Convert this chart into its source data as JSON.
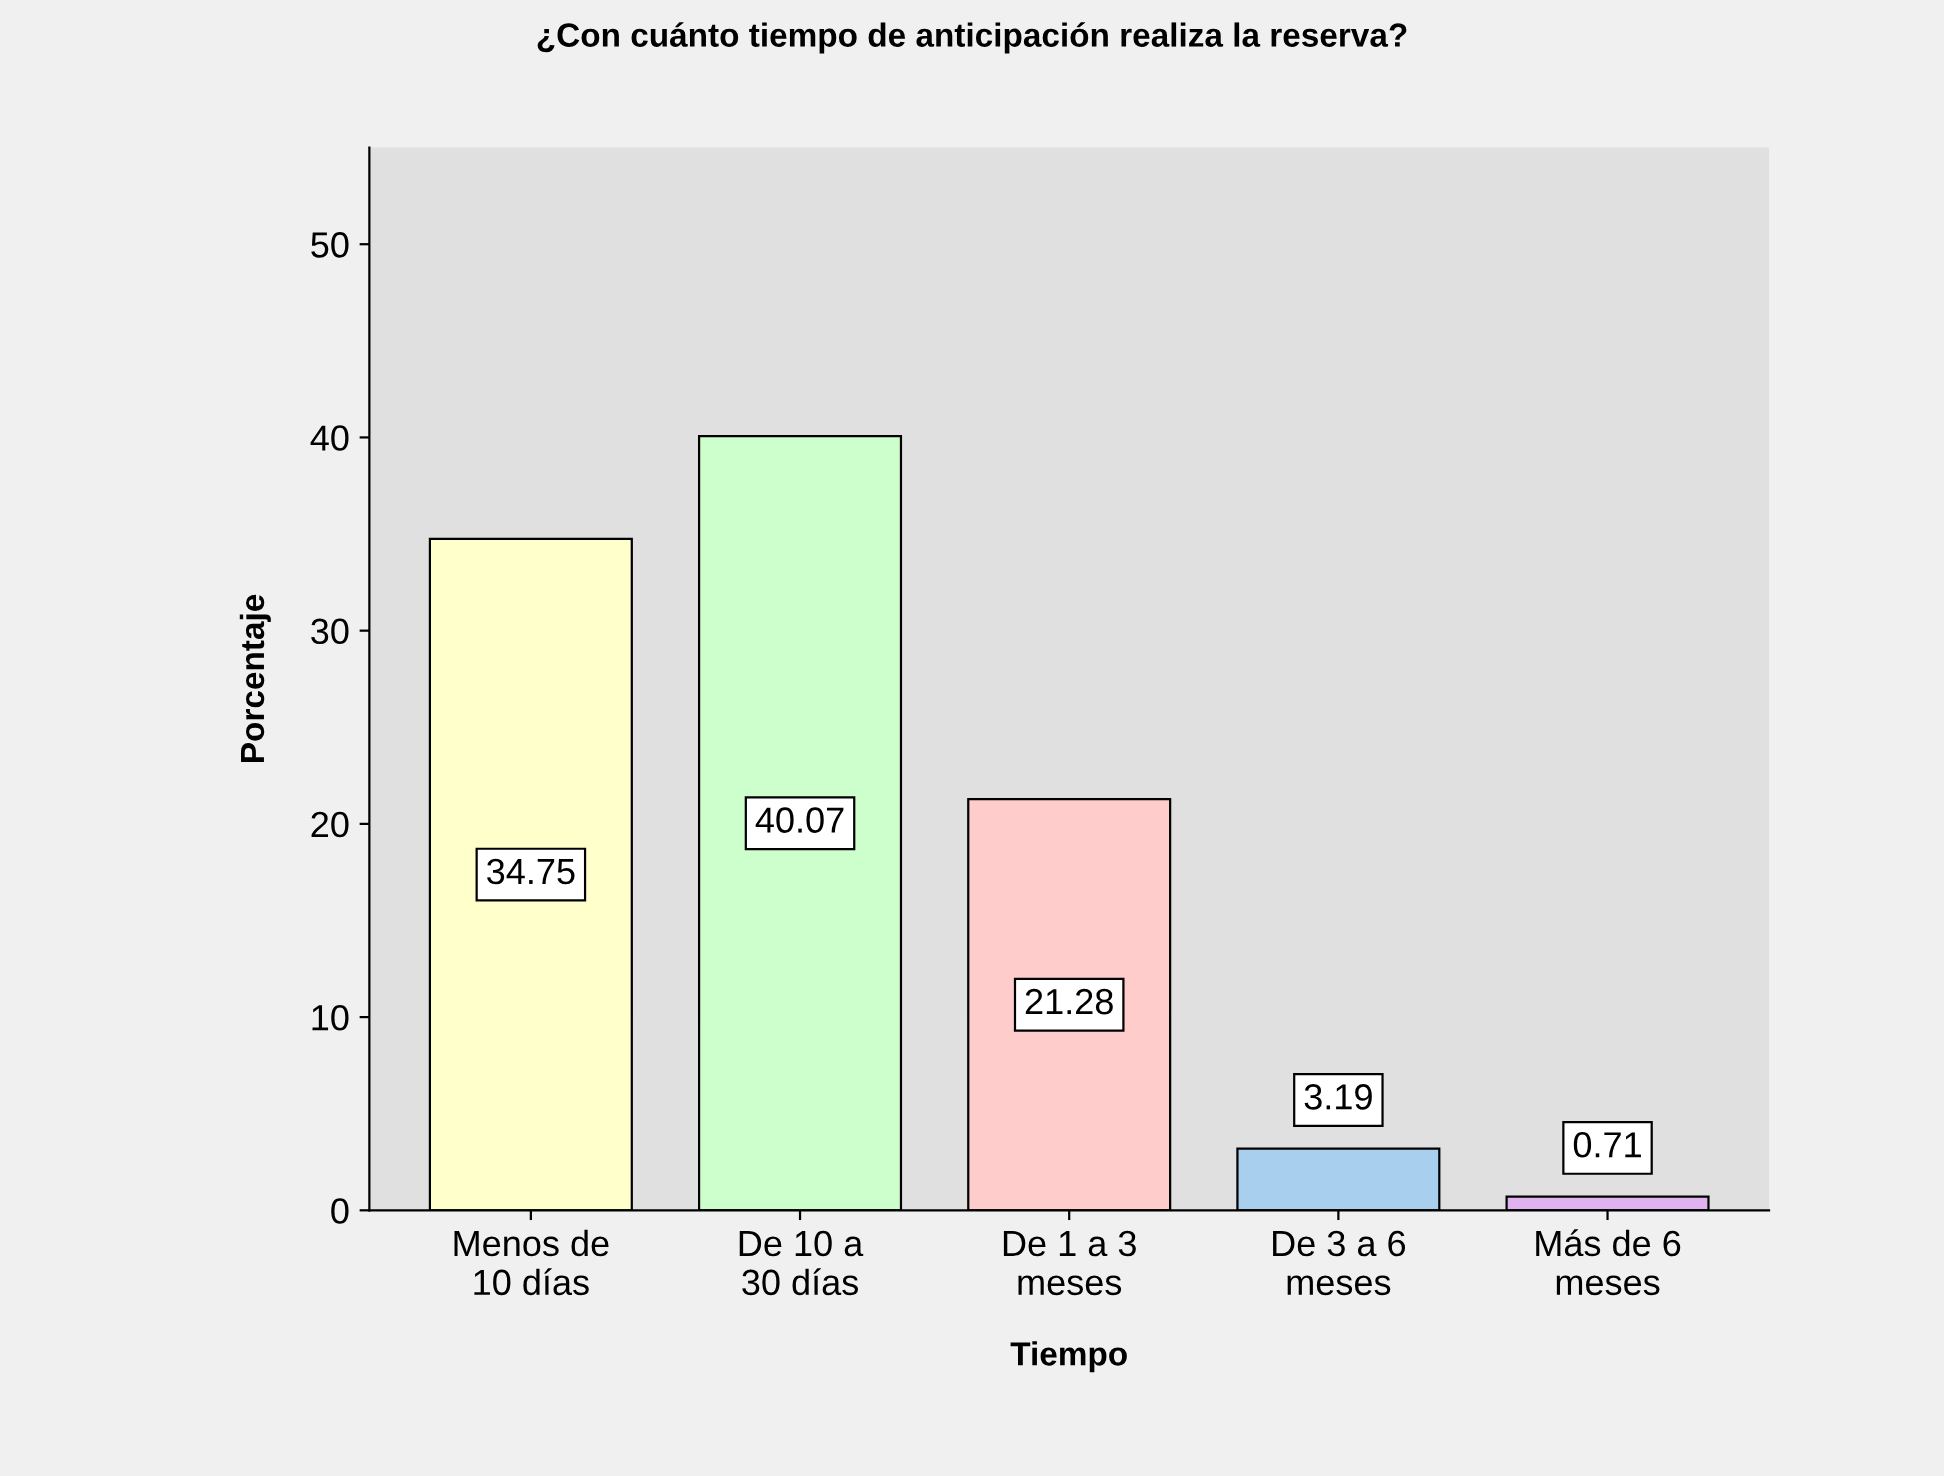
{
  "chart_data": {
    "type": "bar",
    "title": "¿Con cuánto tiempo de anticipación realiza la reserva?",
    "xlabel": "Tiempo",
    "ylabel": "Porcentaje",
    "categories": [
      "Menos de\n10 días",
      "De 10 a\n30 días",
      "De 1 a 3\nmeses",
      "De 3 a 6\nmeses",
      "Más de 6\nmeses"
    ],
    "values": [
      34.75,
      40.07,
      21.28,
      3.19,
      0.71
    ],
    "colors": [
      "#ffffcc",
      "#ccffcc",
      "#ffcccc",
      "#a9cfef",
      "#e0b3f0"
    ],
    "ylim": [
      0,
      55
    ],
    "yticks": [
      0,
      10,
      20,
      30,
      40,
      50
    ],
    "data_labels": true,
    "grid": false,
    "legend": false
  }
}
